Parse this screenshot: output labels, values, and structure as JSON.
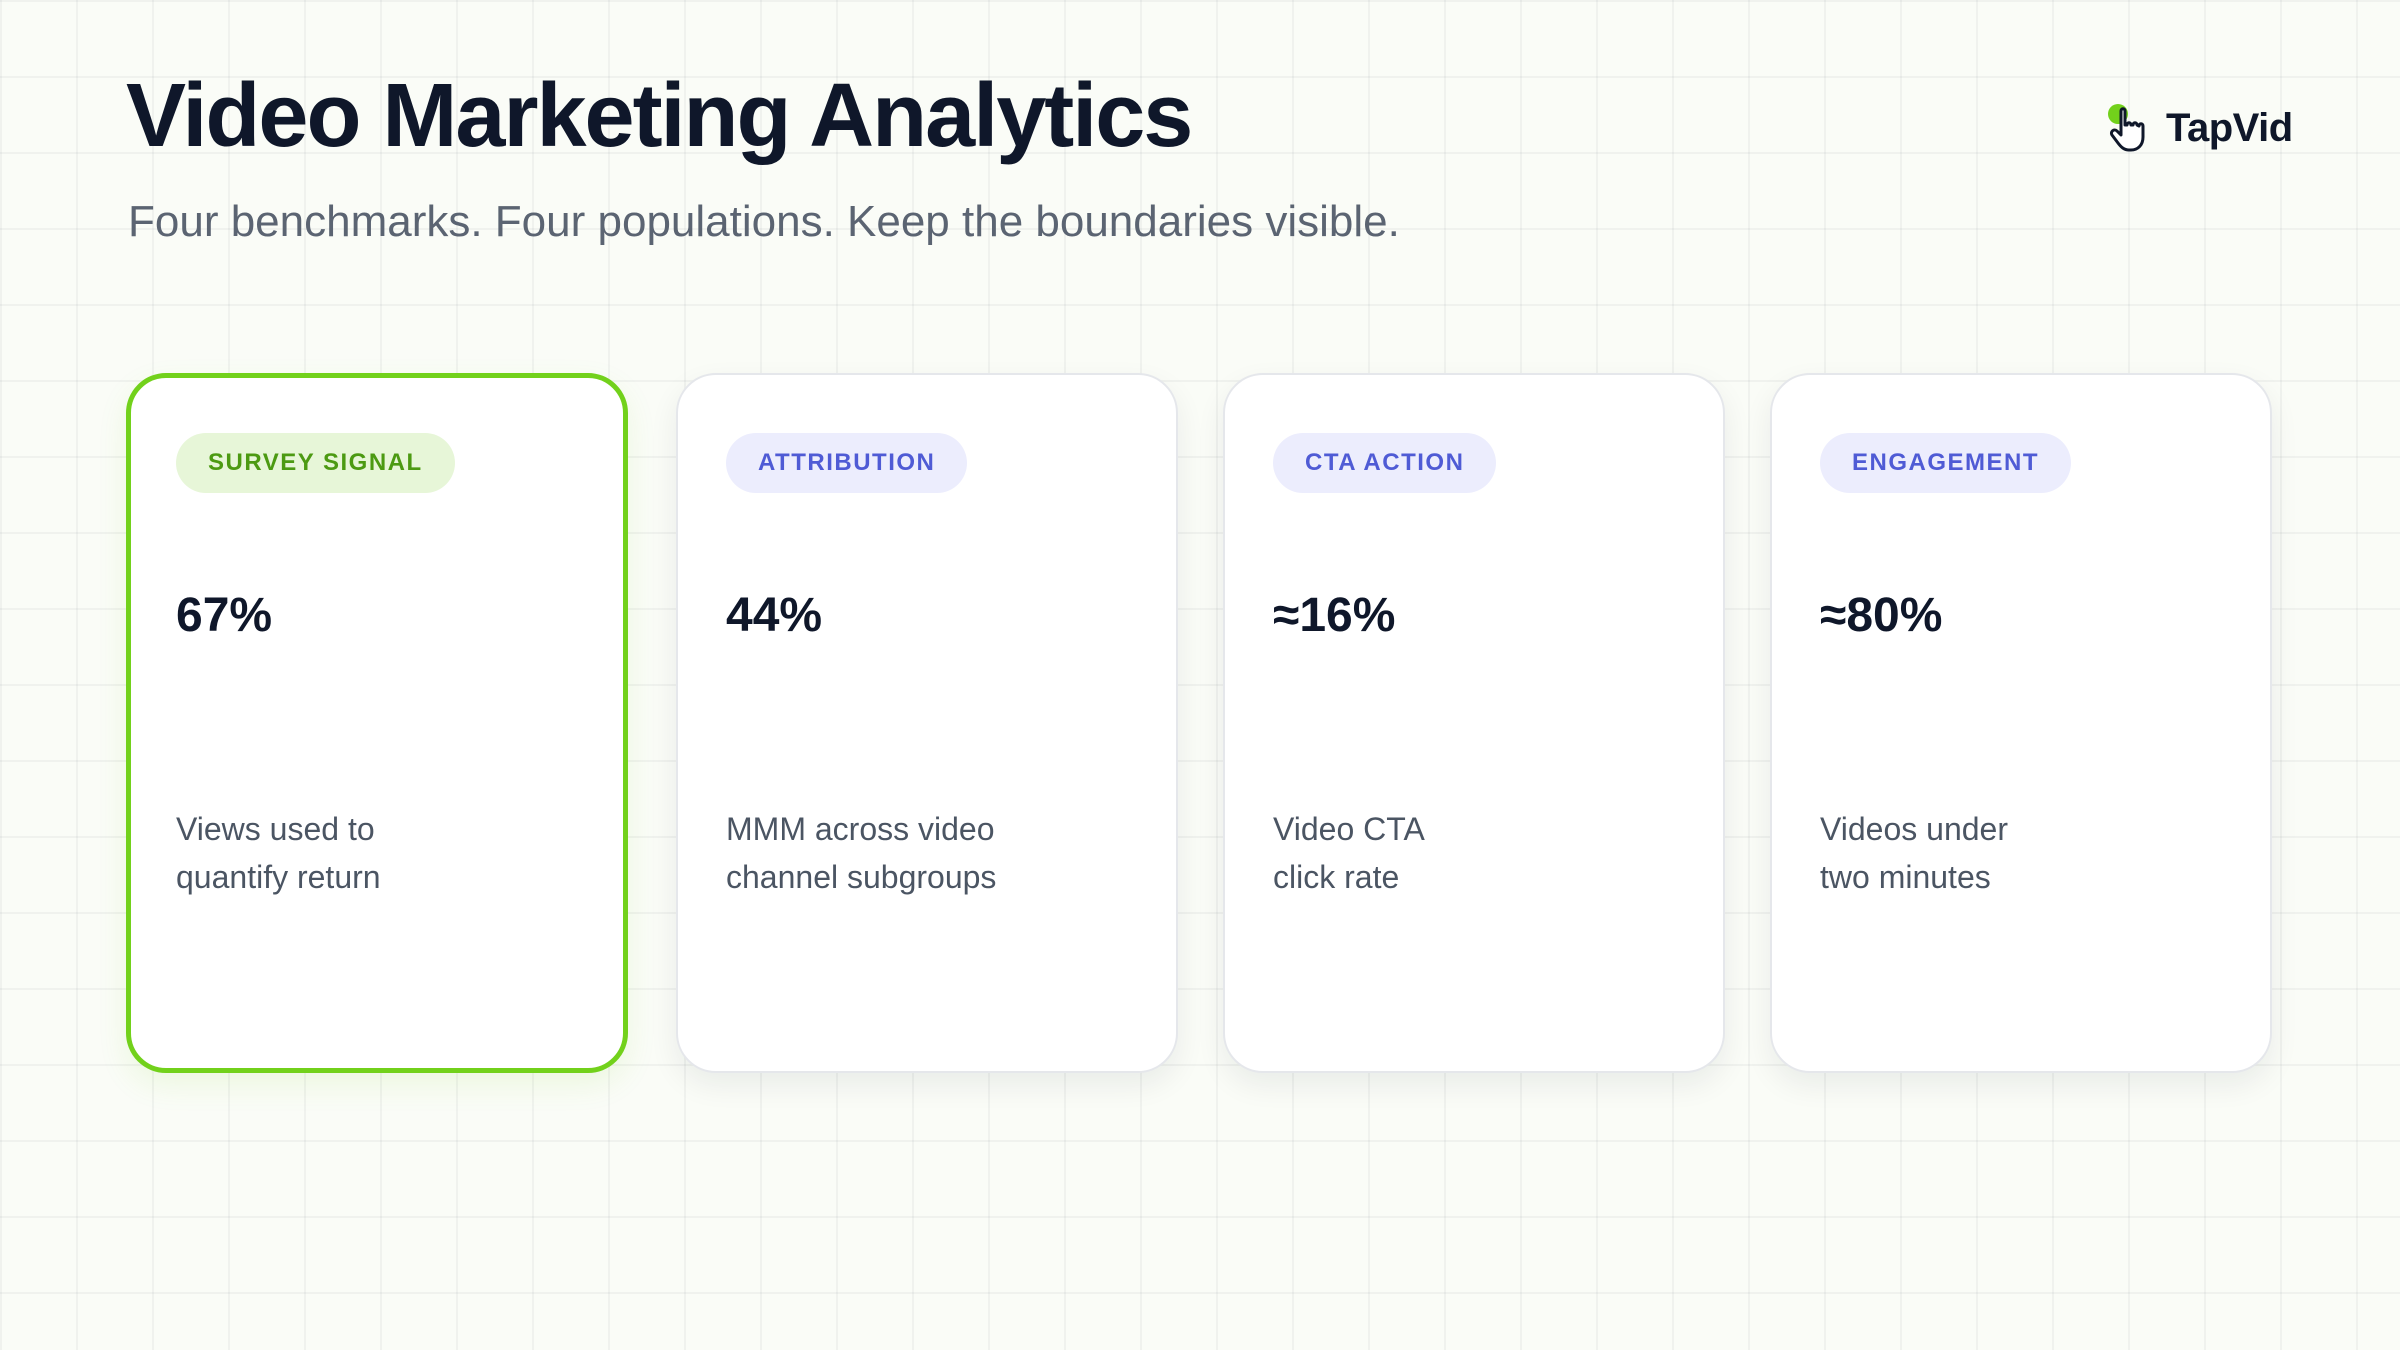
{
  "header": {
    "title": "Video Marketing Analytics",
    "subtitle": "Four benchmarks. Four populations. Keep the boundaries visible."
  },
  "brand": {
    "name": "TapVid",
    "icon": "hand-pointer-icon",
    "accent_color": "#72d11b"
  },
  "cards": [
    {
      "tag": "SURVEY SIGNAL",
      "value": "67%",
      "description": [
        "Views used to",
        "quantify return"
      ],
      "highlighted": true,
      "tag_color": "#4c9a12",
      "tag_background": "#e7f6d8"
    },
    {
      "tag": "ATTRIBUTION",
      "value": "44%",
      "description": [
        "MMM across video",
        "channel subgroups"
      ],
      "highlighted": false,
      "tag_color": "#4f5bd5",
      "tag_background": "#ecedfd"
    },
    {
      "tag": "CTA ACTION",
      "value": "≈16%",
      "description": [
        "Video CTA",
        "click rate"
      ],
      "highlighted": false,
      "tag_color": "#4f5bd5",
      "tag_background": "#ecedfd"
    },
    {
      "tag": "ENGAGEMENT",
      "value": "≈80%",
      "description": [
        "Videos under",
        "two minutes"
      ],
      "highlighted": false,
      "tag_color": "#4f5bd5",
      "tag_background": "#ecedfd"
    }
  ]
}
